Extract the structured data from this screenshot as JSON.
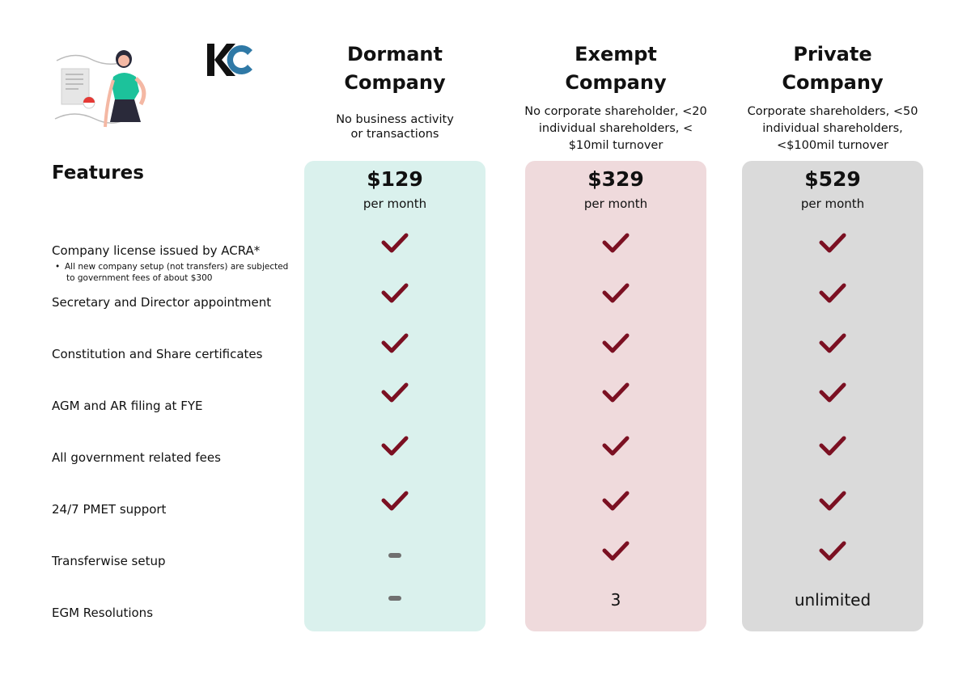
{
  "illustration": {
    "icon": "person-with-document-illustration-icon"
  },
  "logo": {
    "icon": "kc-logo-icon",
    "colors": {
      "k": "#111111",
      "c": "#2f79a6"
    }
  },
  "features_heading": "Features",
  "features": [
    {
      "label": "Company license issued by ACRA*"
    },
    {
      "label": "Secretary and Director appointment"
    },
    {
      "label": "Constitution and Share certificates"
    },
    {
      "label": "AGM and AR filing at FYE"
    },
    {
      "label": "All government related fees"
    },
    {
      "label": "24/7 PMET support"
    },
    {
      "label": "Transferwise setup"
    },
    {
      "label": "EGM Resolutions"
    }
  ],
  "license_note": {
    "line1": "All new company setup (not transfers) are subjected",
    "line2": "to government fees of about $300"
  },
  "plans": [
    {
      "title_line1": "Dormant",
      "title_line2": "Company",
      "desc": [
        "No business activity",
        "or  transactions"
      ],
      "price": "$129",
      "period": "per month",
      "color": "#daf1ed",
      "cells": [
        "check",
        "check",
        "check",
        "check",
        "check",
        "check",
        "dash",
        "dash"
      ]
    },
    {
      "title_line1": "Exempt",
      "title_line2": "Company",
      "desc": [
        "No corporate shareholder, <20",
        "individual shareholders, <",
        "$10mil turnover"
      ],
      "price": "$329",
      "period": "per month",
      "color": "#efdadc",
      "cells": [
        "check",
        "check",
        "check",
        "check",
        "check",
        "check",
        "check",
        "3"
      ]
    },
    {
      "title_line1": "Private",
      "title_line2": "Company",
      "desc": [
        "Corporate shareholders, <50",
        "individual shareholders,",
        "<$100mil turnover"
      ],
      "price": "$529",
      "period": "per month",
      "color": "#dadada",
      "cells": [
        "check",
        "check",
        "check",
        "check",
        "check",
        "check",
        "check",
        "unlimited"
      ]
    }
  ],
  "check_color": "#7b1022",
  "check_icon": "check-mark-icon",
  "dash_icon": "dash-icon"
}
